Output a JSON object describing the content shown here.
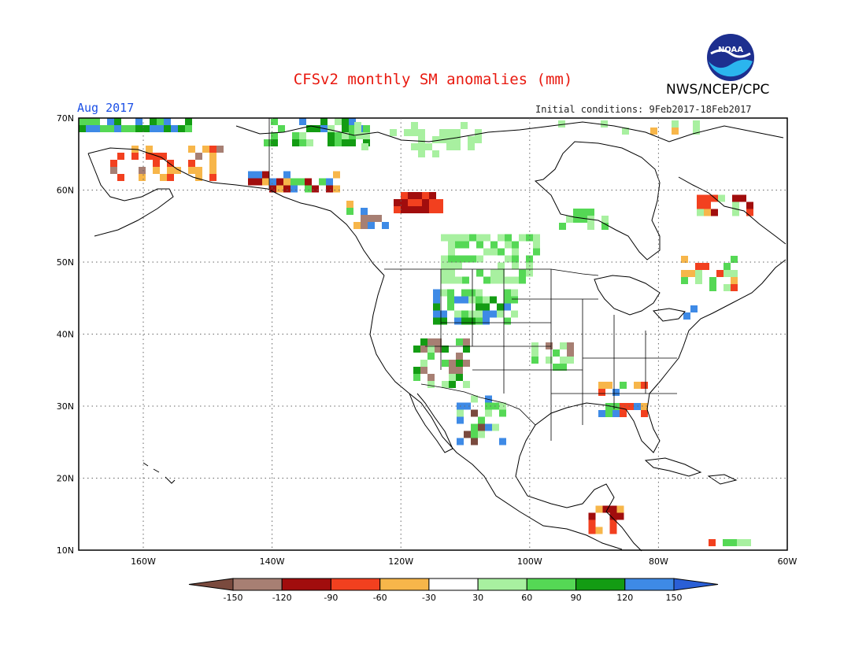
{
  "header": {
    "title": "CFSv2 monthly SM anomalies (mm)",
    "agency": "NWS/NCEP/CPC",
    "logo_text": "NOAA",
    "month": "Aug 2017",
    "initial_conditions": "Initial conditions: 9Feb2017-18Feb2017"
  },
  "map": {
    "lon_ticks": [
      "160W",
      "140W",
      "120W",
      "100W",
      "80W",
      "60W"
    ],
    "lat_ticks": [
      "10N",
      "20N",
      "30N",
      "40N",
      "50N",
      "60N",
      "70N"
    ]
  },
  "legend": {
    "labels": [
      "-150",
      "-120",
      "-90",
      "-60",
      "-30",
      "30",
      "60",
      "90",
      "120",
      "150"
    ],
    "colors": [
      "#7a4a3e",
      "#a77f73",
      "#a10d0d",
      "#f2401f",
      "#f7b64a",
      "#ffffff",
      "#a8f0a0",
      "#55d855",
      "#139c13",
      "#3e8ae6",
      "#2a5fd6"
    ]
  },
  "colors": {
    "dark_brown": "#7a4a3e",
    "brown": "#a77f73",
    "dark_red": "#a10d0d",
    "red": "#f2401f",
    "orange": "#f7b64a",
    "light_green": "#a8f0a0",
    "green": "#55d855",
    "dark_green": "#139c13",
    "blue": "#3e8ae6",
    "title_red": "#e8190f",
    "month_blue": "#1b4fe6"
  }
}
